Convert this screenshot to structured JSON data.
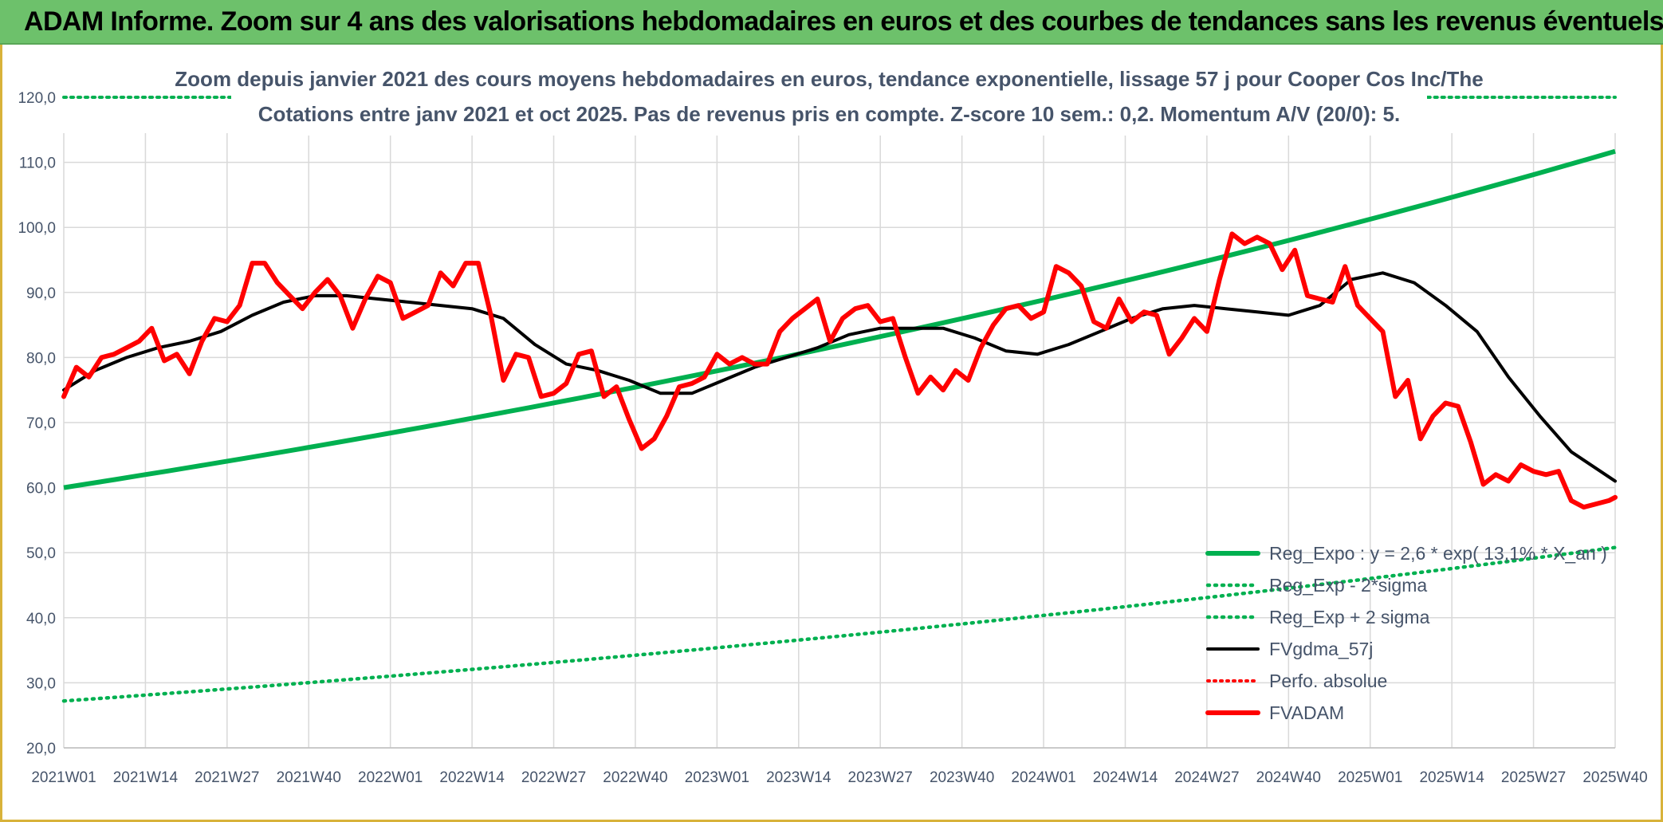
{
  "header": {
    "title": "ADAM Informe. Zoom sur 4 ans des valorisations hebdomadaires en euros et des courbes de tendances sans les revenus éventuels"
  },
  "colors": {
    "banner": "#6dc16b",
    "trend": "#00b050",
    "price": "#ff0000",
    "smooth": "#000000",
    "grid": "#d9d9d9",
    "text": "#46546a"
  },
  "chart_data": {
    "type": "line",
    "title_lines": [
      "Zoom depuis janvier 2021 des cours moyens hebdomadaires en euros, tendance exponentielle, lissage 57 j pour Cooper Cos Inc/The",
      "Cotations entre janv 2021 et oct 2025. Pas de revenus pris en compte. Z-score 10 sem.: 0,2. Momentum A/V (20/0): 5."
    ],
    "xlabel": "",
    "ylabel": "",
    "ylim": [
      20,
      120
    ],
    "y_ticks": [
      "20,0",
      "30,0",
      "40,0",
      "50,0",
      "60,0",
      "70,0",
      "80,0",
      "90,0",
      "100,0",
      "110,0",
      "120,0"
    ],
    "x_ticks": [
      "2021W01",
      "2021W14",
      "2021W27",
      "2021W40",
      "2022W01",
      "2022W14",
      "2022W27",
      "2022W40",
      "2023W01",
      "2023W14",
      "2023W27",
      "2023W40",
      "2024W01",
      "2024W14",
      "2024W27",
      "2024W40",
      "2025W01",
      "2025W14",
      "2025W27",
      "2025W40"
    ],
    "week_range": [
      0,
      247
    ],
    "legend": [
      {
        "key": "reg",
        "label": "Reg_Expo : y = 2,6 * exp( 13,1% * X_an )"
      },
      {
        "key": "lower",
        "label": "Reg_Exp - 2*sigma"
      },
      {
        "key": "upper",
        "label": "Reg_Exp + 2 sigma"
      },
      {
        "key": "smooth",
        "label": "FVgdma_57j"
      },
      {
        "key": "perf",
        "label": "Perfo. absolue"
      },
      {
        "key": "price",
        "label": "FVADAM"
      }
    ],
    "series": [
      {
        "name": "Reg_Expo",
        "style": "thick-green",
        "x": [
          0,
          247
        ],
        "values": [
          60.0,
          111.7
        ],
        "growth": "exponential"
      },
      {
        "name": "Reg_Exp - 2*sigma",
        "style": "dotted-green",
        "x": [
          0,
          247
        ],
        "values": [
          27.2,
          50.8
        ],
        "growth": "exponential"
      },
      {
        "name": "Reg_Exp + 2 sigma",
        "style": "dotted-green",
        "x": [
          0,
          247
        ],
        "values": [
          120.0,
          120.0
        ],
        "note": "above plotted range except extremes"
      },
      {
        "name": "Perfo. absolue",
        "style": "dotted-red",
        "x": [],
        "values": []
      },
      {
        "name": "FVgdma_57j",
        "style": "black",
        "x": [
          0,
          5,
          10,
          15,
          20,
          25,
          30,
          35,
          40,
          45,
          50,
          55,
          60,
          65,
          70,
          75,
          80,
          85,
          90,
          95,
          100,
          105,
          110,
          115,
          120,
          125,
          130,
          135,
          140,
          145,
          150,
          155,
          160,
          165,
          170,
          175,
          180,
          185,
          190,
          195,
          200,
          205,
          210,
          215,
          220,
          225,
          230,
          235,
          240,
          247
        ],
        "values": [
          75.0,
          78.0,
          80.0,
          81.5,
          82.5,
          84.0,
          86.5,
          88.5,
          89.5,
          89.5,
          89.0,
          88.5,
          88.0,
          87.5,
          86.0,
          82.0,
          79.0,
          78.0,
          76.5,
          74.5,
          74.5,
          76.5,
          78.5,
          80.0,
          81.5,
          83.5,
          84.5,
          84.5,
          84.5,
          83.0,
          81.0,
          80.5,
          82.0,
          84.0,
          86.0,
          87.5,
          88.0,
          87.5,
          87.0,
          86.5,
          88.0,
          92.0,
          93.0,
          91.5,
          88.0,
          84.0,
          77.0,
          71.0,
          65.5,
          61.0
        ]
      },
      {
        "name": "FVADAM",
        "style": "thick-red",
        "x": [
          0,
          2,
          4,
          6,
          8,
          10,
          12,
          14,
          16,
          18,
          20,
          22,
          24,
          26,
          28,
          30,
          32,
          34,
          36,
          38,
          40,
          42,
          44,
          46,
          48,
          50,
          52,
          54,
          56,
          58,
          60,
          62,
          64,
          66,
          68,
          70,
          72,
          74,
          76,
          78,
          80,
          82,
          84,
          86,
          88,
          90,
          92,
          94,
          96,
          98,
          100,
          102,
          104,
          106,
          108,
          110,
          112,
          114,
          116,
          118,
          120,
          122,
          124,
          126,
          128,
          130,
          132,
          134,
          136,
          138,
          140,
          142,
          144,
          146,
          148,
          150,
          152,
          154,
          156,
          158,
          160,
          162,
          164,
          166,
          168,
          170,
          172,
          174,
          176,
          178,
          180,
          182,
          184,
          186,
          188,
          190,
          192,
          194,
          196,
          198,
          200,
          202,
          204,
          206,
          208,
          210,
          212,
          214,
          216,
          218,
          220,
          222,
          224,
          226,
          228,
          230,
          232,
          234,
          236,
          238,
          240,
          242,
          244,
          246,
          247
        ],
        "values": [
          74.0,
          78.5,
          77.0,
          80.0,
          80.5,
          81.5,
          82.5,
          84.5,
          79.5,
          80.5,
          77.5,
          82.5,
          86.0,
          85.5,
          88.0,
          94.5,
          94.5,
          91.5,
          89.5,
          87.5,
          90.0,
          92.0,
          89.5,
          84.5,
          89.0,
          92.5,
          91.5,
          86.0,
          87.0,
          88.0,
          93.0,
          91.0,
          94.5,
          94.5,
          86.5,
          76.5,
          80.5,
          80.0,
          74.0,
          74.5,
          76.0,
          80.5,
          81.0,
          74.0,
          75.5,
          70.5,
          66.0,
          67.5,
          71.0,
          75.5,
          76.0,
          77.0,
          80.5,
          79.0,
          80.0,
          79.0,
          79.0,
          84.0,
          86.0,
          87.5,
          89.0,
          82.5,
          86.0,
          87.5,
          88.0,
          85.5,
          86.0,
          80.0,
          74.5,
          77.0,
          75.0,
          78.0,
          76.5,
          81.5,
          85.0,
          87.5,
          88.0,
          86.0,
          87.0,
          94.0,
          93.0,
          91.0,
          85.5,
          84.5,
          89.0,
          85.5,
          87.0,
          86.5,
          80.5,
          83.0,
          86.0,
          84.0,
          92.0,
          99.0,
          97.5,
          98.5,
          97.5,
          93.5,
          96.5,
          89.5,
          89.0,
          88.5,
          94.0,
          88.0,
          86.0,
          84.0,
          74.0,
          76.5,
          67.5,
          71.0,
          73.0,
          72.5,
          67.0,
          60.5,
          62.0,
          61.0,
          63.5,
          62.5,
          62.0,
          62.5,
          58.0,
          57.0,
          57.5,
          58.0,
          58.5
        ]
      }
    ]
  }
}
